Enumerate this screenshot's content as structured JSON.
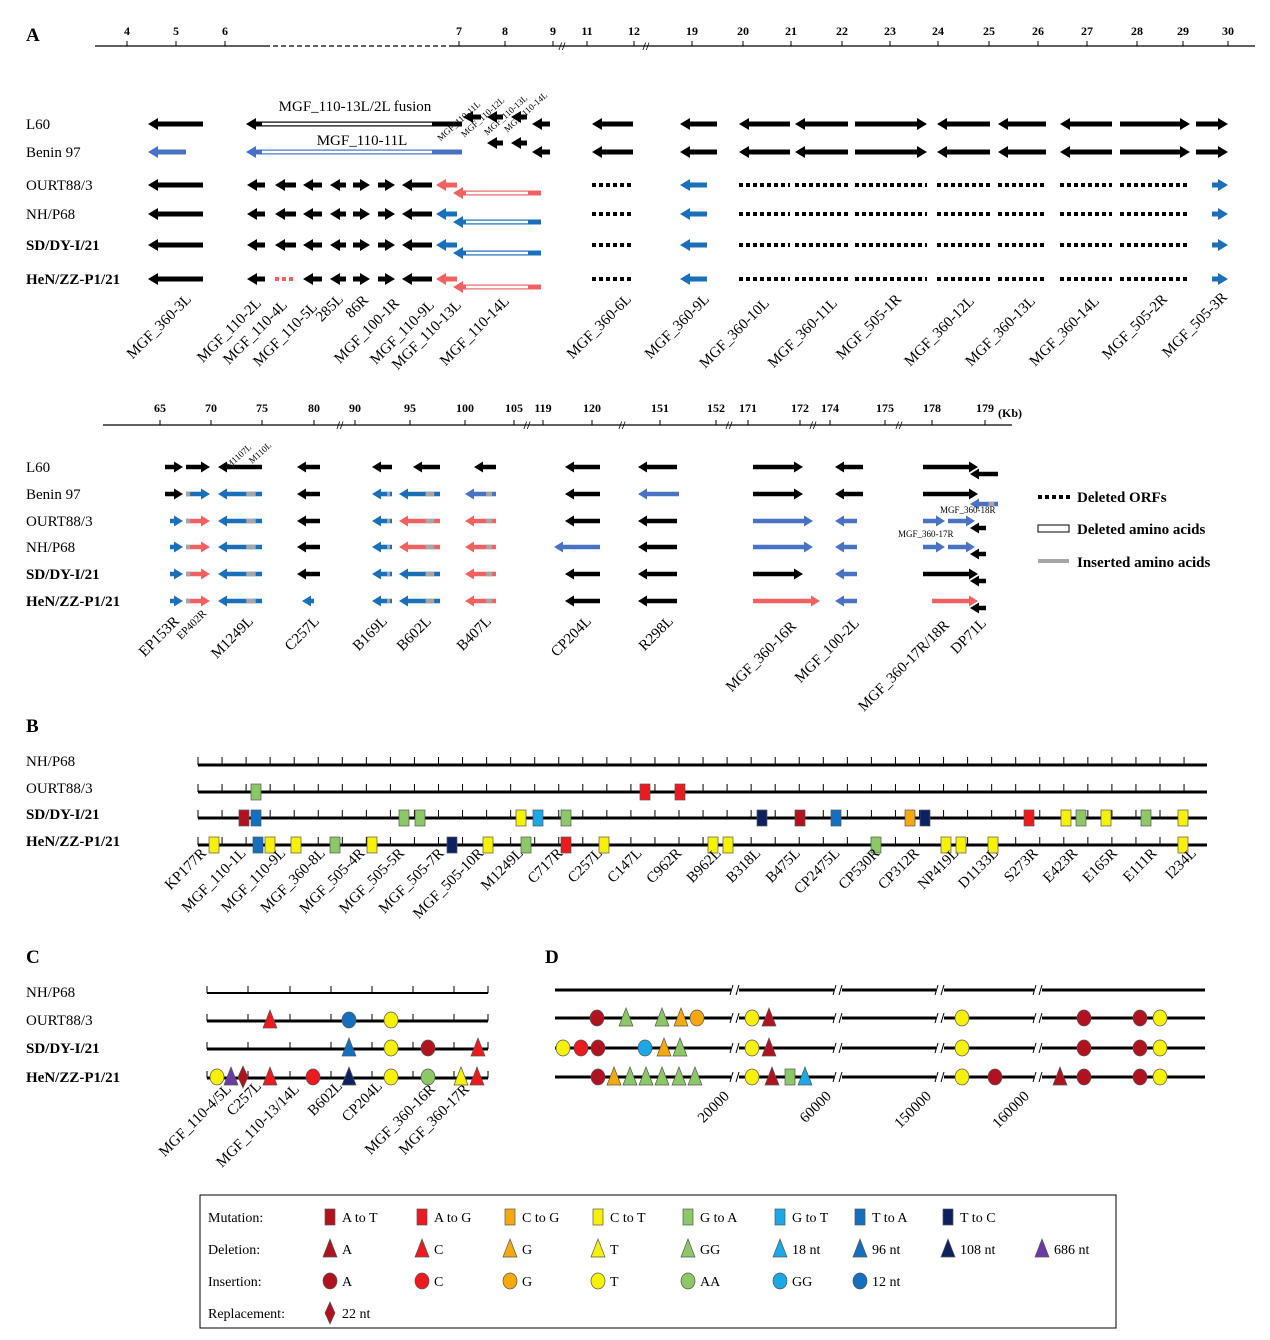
{
  "colors": {
    "black": "#000000",
    "blue": "#1a6fb8",
    "blue_light": "#4a72c2",
    "red": "#f06262",
    "grey": "#a6a6a6",
    "A_to_T": "#b0121f",
    "A_to_G": "#ec1a1f",
    "C_to_G": "#f5a90d",
    "C_to_T": "#f7f205",
    "G_to_A": "#8cc866",
    "G_to_T": "#1aa9e6",
    "T_to_A": "#146fbf",
    "T_to_C": "#0d2160",
    "purple": "#6b3aa2"
  },
  "strains": [
    {
      "name": "L60",
      "bold": false
    },
    {
      "name": "Benin 97",
      "bold": false
    },
    {
      "name": "OURT88/3",
      "bold": false
    },
    {
      "name": "NH/P68",
      "bold": false
    },
    {
      "name": "SD/DY-I/21",
      "bold": true
    },
    {
      "name": "HeN/ZZ-P1/21",
      "bold": true
    }
  ],
  "panel_a": {
    "letter": "A",
    "top_ticks": [
      "4",
      "5",
      "6",
      "7",
      "8",
      "9",
      "11",
      "12",
      "19",
      "20",
      "21",
      "22",
      "23",
      "24",
      "25",
      "26",
      "27",
      "28",
      "29",
      "30"
    ],
    "fusion_label": "MGF_110-13L/2L fusion",
    "benin_label": "MGF_110-11L",
    "small_top_labels": [
      "MGF_110-11L",
      "MGF_110-12L",
      "MGF_110-13L",
      "MGF_110-14L"
    ],
    "top_status": [
      "kbkkkk",
      "kb----",
      "--kkkk",
      "--kkkx",
      "--kkkk",
      "--kkkk",
      "--kkkk",
      "--kkkk",
      "--kkkk",
      "--rbbr",
      "--rbbr",
      "k-----",
      "kk----",
      "kk----",
      "kk----",
      "kkdddd",
      "kkbbbb",
      "kkdddd",
      "kkdddd",
      "kkdddd",
      "kkdddd",
      "kkdddd",
      "kkdddd",
      "kkdddd",
      "kkbbbb"
    ],
    "top_gene_labels": [
      "MGF_360-3L",
      "MGF_110-2L",
      "MGF_110-4L",
      "MGF_110-5L",
      "285L",
      "86R",
      "MGF_100-1R",
      "MGF_110-9L",
      "MGF_110-13L",
      "MGF_110-14L",
      "MGF_360-6L",
      "MGF_360-9L",
      "MGF_360-10L",
      "MGF_360-11L",
      "MGF_505-1R",
      "MGF_360-12L",
      "MGF_360-13L",
      "MGF_360-14L",
      "MGF_505-2R",
      "MGF_505-3R"
    ],
    "bottom_ticks": [
      "65",
      "70",
      "75",
      "80",
      "90",
      "95",
      "100",
      "105",
      "119",
      "120",
      "151",
      "152",
      "171",
      "172",
      "174",
      "175",
      "178",
      "179"
    ],
    "unit": "(Kb)",
    "small_bottom_labels": [
      "M1107L",
      "M110L",
      "MGF_360-17R",
      "MGF_360-18R"
    ],
    "bottom_status": [
      "kkbbbb",
      "kbrrrr",
      "kbbbbb",
      "kkkkkb",
      "kbbbbb",
      "kbrrbb",
      "kbrrrr",
      "kkkbkk",
      "kbkkkk",
      "kkbbkr",
      "kkbbbb",
      "kkbbkr",
      "kbkkkk"
    ],
    "bottom_gene_labels": [
      "EP153R",
      "EP402R",
      "M1249L",
      "C257L",
      "B169L",
      "B602L",
      "B407L",
      "CP204L",
      "R298L",
      "MGF_360-16R",
      "MGF_100-2L",
      "MGF_360-17R/18R",
      "DP71L"
    ],
    "legend": [
      "Deleted ORFs",
      "Deleted amino acids",
      "Inserted amino acids"
    ]
  },
  "panel_b": {
    "letter": "B",
    "strains": [
      "NH/P68",
      "OURT88/3",
      "SD/DY-I/21",
      "HeN/ZZ-P1/21"
    ],
    "marks": {
      "OURT88/3": [
        "G_to_A",
        "A_to_G",
        "A_to_G"
      ],
      "SD/DY-I/21": [
        "A_to_T",
        "T_to_A",
        "G_to_A",
        "G_to_A",
        "C_to_T",
        "G_to_T",
        "G_to_A",
        "T_to_C",
        "A_to_T",
        "T_to_A",
        "C_to_G",
        "T_to_C",
        "A_to_G",
        "C_to_T",
        "G_to_A",
        "C_to_T",
        "G_to_A",
        "C_to_T"
      ],
      "HeN/ZZ-P1/21": [
        "C_to_T",
        "T_to_A",
        "C_to_T",
        "C_to_T",
        "G_to_A",
        "C_to_T",
        "T_to_C",
        "C_to_T",
        "G_to_A",
        "A_to_G",
        "C_to_T",
        "C_to_T",
        "C_to_T",
        "G_to_A",
        "C_to_T",
        "C_to_T",
        "C_to_T",
        "C_to_T"
      ]
    },
    "gene_labels": [
      "KP177R",
      "MGF_110-1L",
      "MGF_110-9L",
      "MGF_360-8L",
      "MGF_505-4R",
      "MGF_505-5R",
      "MGF_505-7R",
      "MGF_505-10R",
      "M1249L",
      "C717R",
      "C257L",
      "C147L",
      "C962R",
      "B962L",
      "B318L",
      "B475L",
      "CP2475L",
      "CP530R",
      "CP312R",
      "NP419L",
      "D1133L",
      "S273R",
      "E423R",
      "E165R",
      "E111R",
      "I234L"
    ]
  },
  "panel_c": {
    "letter": "C",
    "strains": [
      "NH/P68",
      "OURT88/3",
      "SD/DY-I/21",
      "HeN/ZZ-P1/21"
    ],
    "marks": {
      "OURT88/3": [
        "del_C",
        "ins_12nt",
        "ins_T"
      ],
      "SD/DY-I/21": [
        "del_96nt",
        "ins_T",
        "ins_A",
        "del_C"
      ],
      "HeN/ZZ-P1/21": [
        "ins_T",
        "del_686nt",
        "rep_22nt",
        "del_C",
        "ins_C",
        "del_108nt",
        "ins_T",
        "ins_AA",
        "del_T",
        "del_C"
      ]
    },
    "gene_labels": [
      "MGF_110-4/5L",
      "C257L",
      "MGF_110-13/14L",
      "B602L",
      "CP204L",
      "MGF_360-16R",
      "MGF_360-17R"
    ]
  },
  "panel_d": {
    "letter": "D",
    "marks": {
      "OURT88/3": [
        "ins_A",
        "del_GG",
        "del_GG",
        "del_G",
        "ins_G",
        "ins_T",
        "del_A",
        "ins_T",
        "ins_A",
        "ins_A",
        "ins_T"
      ],
      "SD/DY-I/21": [
        "ins_T",
        "ins_C",
        "ins_A",
        "ins_GG",
        "del_G",
        "del_GG",
        "ins_T",
        "del_A",
        "ins_T",
        "ins_A",
        "ins_A",
        "ins_T"
      ],
      "HeN/ZZ-P1/21": [
        "ins_A",
        "del_G",
        "del_GG",
        "del_GG",
        "del_GG",
        "del_GG",
        "del_GG",
        "ins_T",
        "del_A",
        "mut_G_to_A",
        "del_18nt",
        "ins_T",
        "ins_A",
        "del_A",
        "ins_A",
        "ins_A",
        "ins_T"
      ]
    },
    "axis_labels": [
      "20000",
      "60000",
      "150000",
      "160000"
    ]
  },
  "legend": {
    "rows": [
      {
        "title": "Mutation:",
        "items": [
          {
            "kind": "mut",
            "key": "A_to_T",
            "label": "A to T"
          },
          {
            "kind": "mut",
            "key": "A_to_G",
            "label": "A to G"
          },
          {
            "kind": "mut",
            "key": "C_to_G",
            "label": "C to G"
          },
          {
            "kind": "mut",
            "key": "C_to_T",
            "label": "C to T"
          },
          {
            "kind": "mut",
            "key": "G_to_A",
            "label": "G to A"
          },
          {
            "kind": "mut",
            "key": "G_to_T",
            "label": "G to T"
          },
          {
            "kind": "mut",
            "key": "T_to_A",
            "label": "T to A"
          },
          {
            "kind": "mut",
            "key": "T_to_C",
            "label": "T to C"
          }
        ]
      },
      {
        "title": "Deletion:",
        "items": [
          {
            "kind": "del",
            "key": "A",
            "label": "A"
          },
          {
            "kind": "del",
            "key": "C",
            "label": "C"
          },
          {
            "kind": "del",
            "key": "G",
            "label": "G"
          },
          {
            "kind": "del",
            "key": "T",
            "label": "T"
          },
          {
            "kind": "del",
            "key": "GG",
            "label": "GG"
          },
          {
            "kind": "del",
            "key": "18nt",
            "label": "18 nt"
          },
          {
            "kind": "del",
            "key": "96nt",
            "label": "96 nt"
          },
          {
            "kind": "del",
            "key": "108nt",
            "label": "108 nt"
          },
          {
            "kind": "del",
            "key": "686nt",
            "label": "686 nt"
          }
        ]
      },
      {
        "title": "Insertion:",
        "items": [
          {
            "kind": "ins",
            "key": "A",
            "label": "A"
          },
          {
            "kind": "ins",
            "key": "C",
            "label": "C"
          },
          {
            "kind": "ins",
            "key": "G",
            "label": "G"
          },
          {
            "kind": "ins",
            "key": "T",
            "label": "T"
          },
          {
            "kind": "ins",
            "key": "AA",
            "label": "AA"
          },
          {
            "kind": "ins",
            "key": "GG",
            "label": "GG"
          },
          {
            "kind": "ins",
            "key": "12nt",
            "label": "12 nt"
          }
        ]
      },
      {
        "title": "Replacement:",
        "items": [
          {
            "kind": "rep",
            "key": "22nt",
            "label": "22 nt"
          }
        ]
      }
    ]
  }
}
